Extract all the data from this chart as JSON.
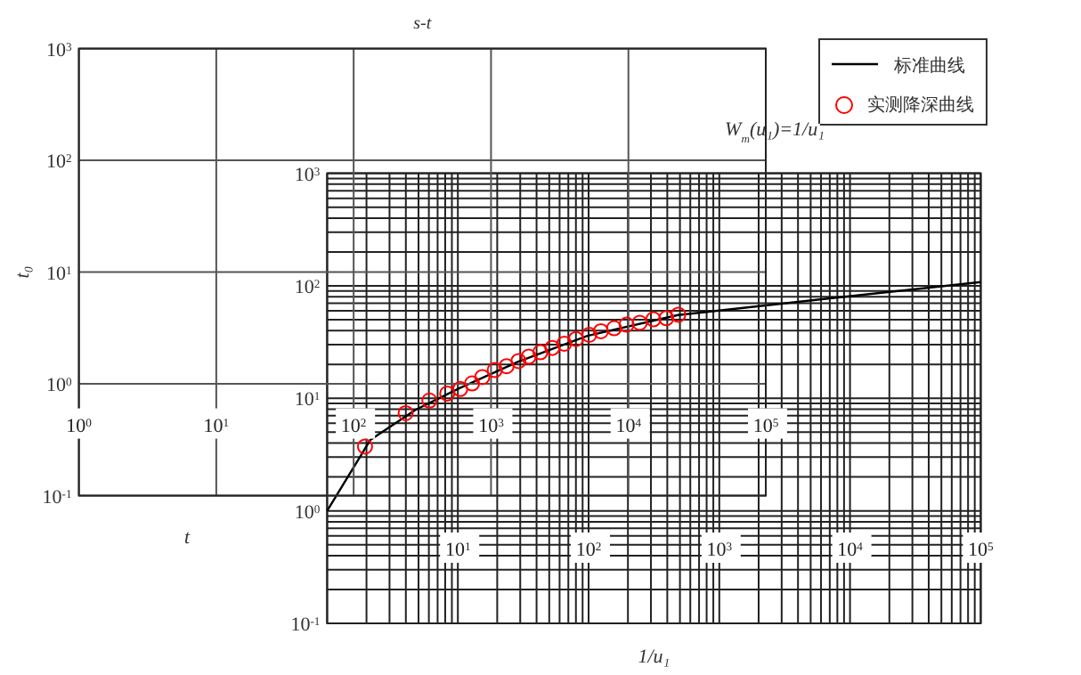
{
  "chart_data": [
    {
      "type": "scatter",
      "title": "s-t",
      "xlabel": "t",
      "ylabel": "t₀",
      "log": "xy",
      "grid": true,
      "legend": "top right",
      "marker": "circle",
      "xlim": [
        1,
        100000
      ],
      "ylim": [
        0.1,
        1000
      ],
      "xticks": [
        {
          "value": 1,
          "label": "10$^{0}$"
        },
        {
          "value": 10,
          "label": "10$^{1}$"
        },
        {
          "value": 100,
          "label": "10$^{2}$"
        },
        {
          "value": 1000,
          "label": "10$^{3}$"
        },
        {
          "value": 10000,
          "label": "10$^{4}$"
        },
        {
          "value": 100000,
          "label": "10$^{5}$"
        }
      ],
      "yticks": [
        {
          "value": 0.1,
          "label": "10$^{-1}$"
        },
        {
          "value": 1,
          "label": "10$^{0}$"
        },
        {
          "value": 10,
          "label": "10$^{1}$"
        },
        {
          "value": 100,
          "label": "10$^{2}$"
        },
        {
          "value": 1000,
          "label": "10$^{3}$"
        }
      ],
      "series": [
        {
          "name": "实测降深曲线",
          "color": "#ff0000",
          "x": [
            121,
            239,
            356,
            480,
            597,
            728,
            864,
            1065,
            1297,
            1585,
            1879,
            2287,
            2793,
            3412,
            4155,
            5188,
            6310,
            7870,
            9700,
            12080,
            15200,
            18880,
            23070
          ],
          "values": [
            0.275,
            0.547,
            0.71,
            0.82,
            0.9,
            1.01,
            1.15,
            1.33,
            1.44,
            1.6,
            1.75,
            1.92,
            2.1,
            2.29,
            2.52,
            2.75,
            2.96,
            3.15,
            3.39,
            3.52,
            3.78,
            3.87,
            4.16
          ]
        }
      ]
    },
    {
      "type": "line",
      "xlabel": "1/u₁",
      "log": "xy",
      "grid": true,
      "legend": "top right",
      "marker": "none",
      "line_style": "solid",
      "annotations": [
        "W$_{m}$(u₁)=1/u₁"
      ],
      "xlim": [
        1,
        100000
      ],
      "ylim": [
        0.1,
        1000
      ],
      "xticks": [
        {
          "value": 1,
          "label": null
        },
        {
          "value": 2,
          "label": null
        },
        {
          "value": 3,
          "label": null
        },
        {
          "value": 4,
          "label": null
        },
        {
          "value": 5,
          "label": null
        },
        {
          "value": 6,
          "label": null
        },
        {
          "value": 7,
          "label": null
        },
        {
          "value": 8,
          "label": null
        },
        {
          "value": 9,
          "label": null
        },
        {
          "value": 10,
          "label": "10$^{1}$"
        },
        {
          "value": 20,
          "label": null
        },
        {
          "value": 30,
          "label": null
        },
        {
          "value": 40,
          "label": null
        },
        {
          "value": 50,
          "label": null
        },
        {
          "value": 60,
          "label": null
        },
        {
          "value": 70,
          "label": null
        },
        {
          "value": 80,
          "label": null
        },
        {
          "value": 90,
          "label": null
        },
        {
          "value": 100,
          "label": "10$^{2}$"
        },
        {
          "value": 200,
          "label": null
        },
        {
          "value": 300,
          "label": null
        },
        {
          "value": 400,
          "label": null
        },
        {
          "value": 500,
          "label": null
        },
        {
          "value": 600,
          "label": null
        },
        {
          "value": 700,
          "label": null
        },
        {
          "value": 800,
          "label": null
        },
        {
          "value": 900,
          "label": null
        },
        {
          "value": 1000,
          "label": "10$^{3}$"
        },
        {
          "value": 2000,
          "label": null
        },
        {
          "value": 3000,
          "label": null
        },
        {
          "value": 4000,
          "label": null
        },
        {
          "value": 5000,
          "label": null
        },
        {
          "value": 6000,
          "label": null
        },
        {
          "value": 7000,
          "label": null
        },
        {
          "value": 8000,
          "label": null
        },
        {
          "value": 9000,
          "label": null
        },
        {
          "value": 10000,
          "label": "10$^{4}$"
        },
        {
          "value": 20000,
          "label": null
        },
        {
          "value": 30000,
          "label": null
        },
        {
          "value": 40000,
          "label": null
        },
        {
          "value": 50000,
          "label": null
        },
        {
          "value": 60000,
          "label": null
        },
        {
          "value": 70000,
          "label": null
        },
        {
          "value": 80000,
          "label": null
        },
        {
          "value": 90000,
          "label": null
        },
        {
          "value": 100000,
          "label": "10$^{5}$"
        }
      ],
      "yticks": [
        {
          "value": 0.1,
          "label": "10$^{-1}$"
        },
        {
          "value": 0.2,
          "label": null
        },
        {
          "value": 0.3,
          "label": null
        },
        {
          "value": 0.4,
          "label": null
        },
        {
          "value": 0.5,
          "label": null
        },
        {
          "value": 0.6,
          "label": null
        },
        {
          "value": 0.7,
          "label": null
        },
        {
          "value": 0.8,
          "label": null
        },
        {
          "value": 0.9,
          "label": null
        },
        {
          "value": 1,
          "label": "10$^{0}$"
        },
        {
          "value": 2,
          "label": null
        },
        {
          "value": 3,
          "label": null
        },
        {
          "value": 4,
          "label": null
        },
        {
          "value": 5,
          "label": null
        },
        {
          "value": 6,
          "label": null
        },
        {
          "value": 7,
          "label": null
        },
        {
          "value": 8,
          "label": null
        },
        {
          "value": 9,
          "label": null
        },
        {
          "value": 10,
          "label": "10$^{1}$"
        },
        {
          "value": 20,
          "label": null
        },
        {
          "value": 30,
          "label": null
        },
        {
          "value": 40,
          "label": null
        },
        {
          "value": 50,
          "label": null
        },
        {
          "value": 60,
          "label": null
        },
        {
          "value": 70,
          "label": null
        },
        {
          "value": 80,
          "label": null
        },
        {
          "value": 90,
          "label": null
        },
        {
          "value": 100,
          "label": "10$^{2}$"
        },
        {
          "value": 200,
          "label": null
        },
        {
          "value": 300,
          "label": null
        },
        {
          "value": 400,
          "label": null
        },
        {
          "value": 500,
          "label": null
        },
        {
          "value": 600,
          "label": null
        },
        {
          "value": 700,
          "label": null
        },
        {
          "value": 800,
          "label": null
        },
        {
          "value": 900,
          "label": null
        },
        {
          "value": 1000,
          "label": "10$^{3}$"
        }
      ],
      "series": [
        {
          "name": "标准曲线",
          "color": "#000000",
          "x": [
            1,
            2.14,
            4.74,
            10.3,
            29,
            98,
            483,
            6800,
            100000
          ],
          "values": [
            1,
            4.27,
            7.9,
            12.3,
            21.2,
            35.9,
            55,
            77,
            108
          ]
        }
      ]
    }
  ]
}
